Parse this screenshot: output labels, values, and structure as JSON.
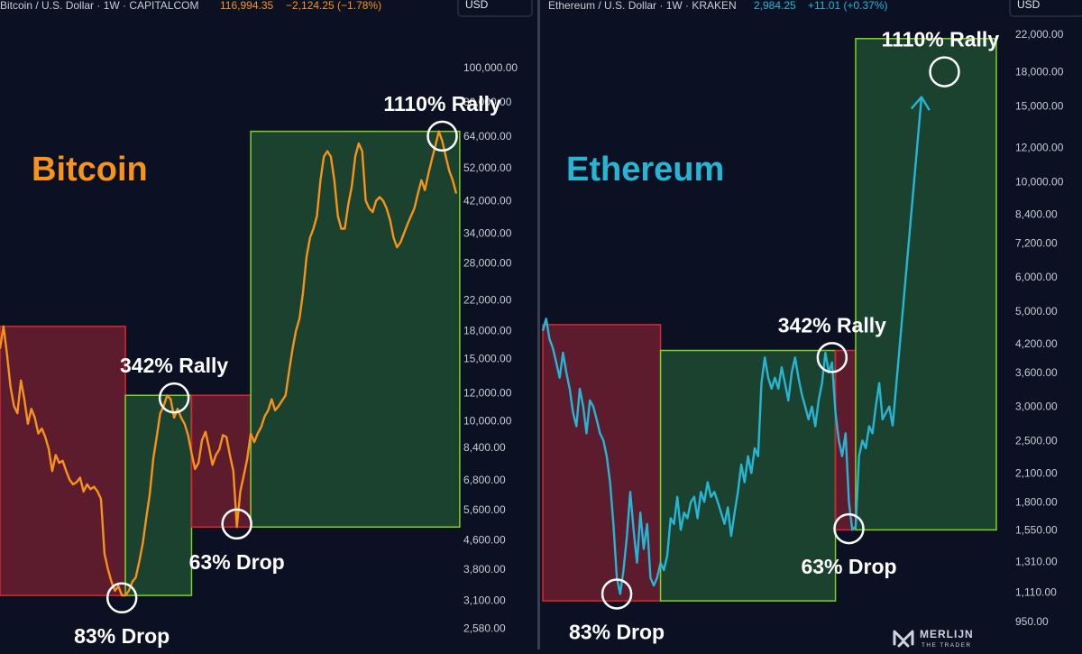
{
  "colors": {
    "background": "#0b1123",
    "bitcoin": "#f7931a",
    "ethereum": "#26b6d4",
    "drop_fill": "#6b1f30",
    "drop_edge": "#e0242e",
    "rally_fill": "#1e4a31",
    "rally_edge": "#7ed321",
    "axis_text": "#c9cbd3",
    "header_text": "#c9cbd3"
  },
  "watermark": {
    "line1": "MERLIJN",
    "line2": "THE TRADER"
  },
  "chart_data": [
    {
      "type": "line",
      "id": "bitcoin",
      "title": "Bitcoin",
      "header": {
        "symbol": "Bitcoin / U.S. Dollar · 1W · CAPITALCOM",
        "price": "116,994.35",
        "change": "−2,124.25 (−1.78%)"
      },
      "currency": "USD",
      "yscale": "log",
      "ylim": [
        2400,
        120000
      ],
      "yticks": [
        {
          "value": 100000,
          "label": "100,000.00"
        },
        {
          "value": 80000,
          "label": "80,000.00"
        },
        {
          "value": 64000,
          "label": "64,000.00"
        },
        {
          "value": 52000,
          "label": "52,000.00"
        },
        {
          "value": 42000,
          "label": "42,000.00"
        },
        {
          "value": 34000,
          "label": "34,000.00"
        },
        {
          "value": 28000,
          "label": "28,000.00"
        },
        {
          "value": 22000,
          "label": "22,000.00"
        },
        {
          "value": 18000,
          "label": "18,000.00"
        },
        {
          "value": 15000,
          "label": "15,000.00"
        },
        {
          "value": 12000,
          "label": "12,000.00"
        },
        {
          "value": 10000,
          "label": "10,000.00"
        },
        {
          "value": 8400,
          "label": "8,400.00"
        },
        {
          "value": 6800,
          "label": "6,800.00"
        },
        {
          "value": 5600,
          "label": "5,600.00"
        },
        {
          "value": 4600,
          "label": "4,600.00"
        },
        {
          "value": 3800,
          "label": "3,800.00"
        },
        {
          "value": 3100,
          "label": "3,100.00"
        },
        {
          "value": 2580,
          "label": "2,580.00"
        }
      ],
      "series": [
        {
          "values": [
            16000,
            18500,
            15500,
            12500,
            11000,
            10500,
            13000,
            11500,
            9800,
            10800,
            10200,
            9200,
            9500,
            9000,
            8300,
            7200,
            8000,
            7600,
            7700,
            7200,
            6800,
            6600,
            6700,
            6900,
            6300,
            6600,
            6400,
            6500,
            6300,
            6000,
            4200,
            3800,
            3500,
            3300,
            3400,
            3200,
            3200,
            3300,
            3500,
            3600,
            4000,
            4500,
            5300,
            6200,
            7800,
            9000,
            10500,
            11000,
            11800,
            11500,
            10200,
            10800,
            10200,
            9800,
            9100,
            8100,
            7300,
            7600,
            8800,
            9300,
            8400,
            7500,
            8000,
            8300,
            9100,
            9000,
            8000,
            7200,
            5000,
            6300,
            7000,
            7800,
            9200,
            8700,
            9200,
            9600,
            10300,
            10700,
            11500,
            10700,
            11000,
            11400,
            11800,
            13800,
            16000,
            18000,
            19500,
            23000,
            29000,
            33000,
            35000,
            38000,
            48000,
            56000,
            58000,
            56000,
            48000,
            38000,
            35000,
            35000,
            41000,
            46000,
            56000,
            61000,
            58000,
            42000,
            40000,
            39000,
            42000,
            43000,
            42000,
            40000,
            37000,
            33000,
            31000,
            32000,
            34000,
            36000,
            38000,
            40000,
            44000,
            48000,
            45000,
            50000,
            55000,
            60000,
            66000,
            62000,
            56000,
            51000,
            48000,
            44000
          ]
        }
      ],
      "regions": [
        {
          "kind": "drop",
          "from_index": 0,
          "to_index": 36,
          "y_range": [
            3200,
            18500
          ]
        },
        {
          "kind": "rally",
          "from_index": 36,
          "to_index": 55,
          "y_range": [
            3200,
            11800
          ]
        },
        {
          "kind": "drop",
          "from_index": 55,
          "to_index": 72,
          "y_range": [
            5000,
            11800
          ]
        },
        {
          "kind": "rally",
          "from_index": 72,
          "to_index": 132,
          "y_range": [
            5000,
            66000
          ]
        }
      ],
      "annotations": [
        {
          "label": "83% Drop",
          "index": 35,
          "value": 3150,
          "position": "below"
        },
        {
          "label": "342% Rally",
          "index": 50,
          "value": 11600,
          "position": "above"
        },
        {
          "label": "63% Drop",
          "index": 68,
          "value": 5100,
          "position": "below"
        },
        {
          "label": "1110% Rally",
          "index": 127,
          "value": 64000,
          "position": "above"
        }
      ]
    },
    {
      "type": "line",
      "id": "ethereum",
      "title": "Ethereum",
      "header": {
        "symbol": "Ethereum / U.S. Dollar · 1W · KRAKEN",
        "price": "2,984.25",
        "change": "+11.01 (+0.37%)"
      },
      "currency": "USD",
      "yscale": "log",
      "ylim": [
        900,
        24000
      ],
      "yticks": [
        {
          "value": 22000,
          "label": "22,000.00"
        },
        {
          "value": 18000,
          "label": "18,000.00"
        },
        {
          "value": 15000,
          "label": "15,000.00"
        },
        {
          "value": 12000,
          "label": "12,000.00"
        },
        {
          "value": 10000,
          "label": "10,000.00"
        },
        {
          "value": 8400,
          "label": "8,400.00"
        },
        {
          "value": 7200,
          "label": "7,200.00"
        },
        {
          "value": 6000,
          "label": "6,000.00"
        },
        {
          "value": 5000,
          "label": "5,000.00"
        },
        {
          "value": 4200,
          "label": "4,200.00"
        },
        {
          "value": 3600,
          "label": "3,600.00"
        },
        {
          "value": 3000,
          "label": "3,000.00"
        },
        {
          "value": 2500,
          "label": "2,500.00"
        },
        {
          "value": 2100,
          "label": "2,100.00"
        },
        {
          "value": 1800,
          "label": "1,800.00"
        },
        {
          "value": 1550,
          "label": "1,550.00"
        },
        {
          "value": 1310,
          "label": "1,310.00"
        },
        {
          "value": 1110,
          "label": "1,110.00"
        },
        {
          "value": 950,
          "label": "950.00"
        }
      ],
      "series": [
        {
          "values": [
            4500,
            4800,
            4300,
            4100,
            3800,
            3500,
            4000,
            3600,
            3300,
            2900,
            2700,
            3300,
            3000,
            2600,
            3100,
            3000,
            2800,
            2600,
            2500,
            2300,
            2000,
            1600,
            1200,
            1100,
            1250,
            1500,
            1900,
            1550,
            1300,
            1700,
            1400,
            1600,
            1200,
            1150,
            1200,
            1300,
            1250,
            1350,
            1650,
            1600,
            1850,
            1550,
            1700,
            1650,
            1800,
            1850,
            1650,
            1900,
            1800,
            2000,
            1850,
            1900,
            1800,
            1700,
            1600,
            1750,
            1500,
            1700,
            1900,
            2200,
            2000,
            2300,
            2100,
            2400,
            2300,
            3400,
            3900,
            3500,
            3300,
            3500,
            3300,
            3700,
            3400,
            3100,
            3600,
            3900,
            3500,
            3200,
            3000,
            2800,
            3000,
            2700,
            3100,
            3400,
            4000,
            3600,
            3800,
            2900,
            2500,
            2300,
            2600,
            1800,
            1550,
            1580,
            2300,
            2500,
            2400,
            2700,
            2600,
            3000,
            3400,
            2800,
            2900,
            3000,
            2700,
            18000
          ],
          "projection_from_index": 104
        }
      ],
      "regions": [
        {
          "kind": "drop",
          "from_index": 0,
          "to_index": 35,
          "y_range": [
            1060,
            4650
          ]
        },
        {
          "kind": "rally",
          "from_index": 35,
          "to_index": 87,
          "y_range": [
            1060,
            4050
          ]
        },
        {
          "kind": "drop",
          "from_index": 87,
          "to_index": 93,
          "y_range": [
            1550,
            4050
          ]
        },
        {
          "kind": "rally",
          "from_index": 93,
          "to_index": 118,
          "y_range": [
            1550,
            21500
          ]
        }
      ],
      "annotations": [
        {
          "label": "83% Drop",
          "index": 22,
          "value": 1100,
          "position": "below"
        },
        {
          "label": "342% Rally",
          "index": 86,
          "value": 3900,
          "position": "above"
        },
        {
          "label": "63% Drop",
          "index": 91,
          "value": 1560,
          "position": "below"
        },
        {
          "label": "1110% Rally",
          "index": 111,
          "value": 18000,
          "position": "above"
        }
      ]
    }
  ]
}
